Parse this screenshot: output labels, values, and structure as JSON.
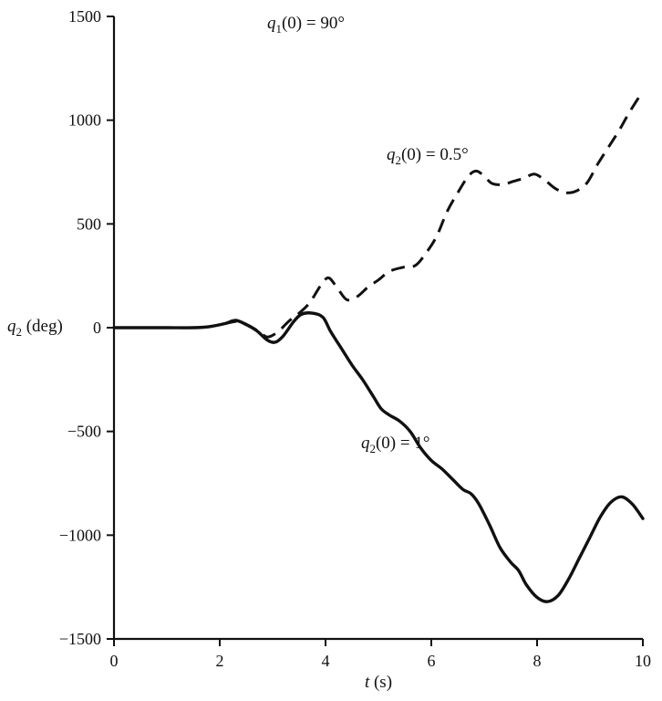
{
  "figure": {
    "background": "#ffffff",
    "ink_color": "#111111"
  },
  "labels": {
    "title": {
      "pre": "q",
      "sub": "1",
      "post": "(0) = 90°"
    },
    "dashed_label": {
      "pre": "q",
      "sub": "2",
      "post": "(0) = 0.5°"
    },
    "solid_label": {
      "pre": "q",
      "sub": "2",
      "post": "(0) = 1°"
    },
    "y_axis": {
      "pre": "q",
      "sub": "2",
      "post": " (deg)"
    },
    "x_axis": {
      "pre": "t",
      "post": " (s)"
    }
  },
  "chart_data": {
    "type": "line",
    "title": "q1(0) = 90°",
    "xlabel": "t (s)",
    "ylabel": "q2 (deg)",
    "xlim": [
      0,
      10
    ],
    "ylim": [
      -1500,
      1500
    ],
    "xticks": [
      0,
      2,
      4,
      6,
      8,
      10
    ],
    "yticks": [
      -1500,
      -1000,
      -500,
      0,
      500,
      1000,
      1500
    ],
    "grid": false,
    "legend_position": "inline-annotations",
    "annotations": [
      {
        "text": "q1(0) = 90°",
        "x": 3.6,
        "y": 1430
      },
      {
        "text": "q2(0) = 0.5°",
        "x": 5.2,
        "y": 840
      },
      {
        "text": "q2(0) = 1°",
        "x": 4.7,
        "y": -540
      }
    ],
    "series": [
      {
        "name": "q2(0) = 0.5°",
        "style": "dashed",
        "x": [
          0,
          0.5,
          1,
          1.5,
          1.8,
          2.1,
          2.35,
          2.55,
          2.75,
          2.9,
          3.1,
          3.3,
          3.5,
          3.7,
          3.9,
          4.05,
          4.2,
          4.4,
          4.6,
          4.8,
          5.0,
          5.2,
          5.45,
          5.7,
          5.9,
          6.1,
          6.3,
          6.5,
          6.7,
          6.85,
          7.0,
          7.15,
          7.35,
          7.55,
          7.75,
          7.95,
          8.15,
          8.35,
          8.55,
          8.75,
          8.95,
          9.15,
          9.35,
          9.55,
          9.75,
          10
        ],
        "y": [
          0,
          0,
          0,
          0,
          5,
          20,
          30,
          10,
          -20,
          -45,
          -20,
          30,
          70,
          120,
          200,
          240,
          200,
          135,
          150,
          195,
          230,
          270,
          290,
          300,
          360,
          440,
          560,
          650,
          730,
          755,
          730,
          695,
          690,
          705,
          720,
          740,
          710,
          670,
          650,
          660,
          700,
          790,
          870,
          950,
          1040,
          1140
        ]
      },
      {
        "name": "q2(0) = 1°",
        "style": "solid",
        "x": [
          0,
          0.5,
          1,
          1.5,
          1.8,
          2.1,
          2.3,
          2.5,
          2.7,
          2.9,
          3.05,
          3.2,
          3.4,
          3.55,
          3.75,
          3.95,
          4.1,
          4.3,
          4.5,
          4.7,
          4.9,
          5.05,
          5.2,
          5.4,
          5.6,
          5.8,
          6.0,
          6.2,
          6.4,
          6.6,
          6.75,
          6.9,
          7.1,
          7.3,
          7.5,
          7.65,
          7.8,
          8.0,
          8.2,
          8.4,
          8.6,
          8.8,
          9.0,
          9.2,
          9.4,
          9.6,
          9.8,
          10
        ],
        "y": [
          0,
          0,
          0,
          0,
          5,
          20,
          35,
          15,
          -15,
          -60,
          -70,
          -40,
          30,
          65,
          70,
          50,
          -20,
          -100,
          -180,
          -250,
          -330,
          -390,
          -420,
          -450,
          -500,
          -580,
          -640,
          -680,
          -730,
          -780,
          -800,
          -850,
          -950,
          -1060,
          -1130,
          -1170,
          -1240,
          -1300,
          -1320,
          -1290,
          -1210,
          -1110,
          -1010,
          -910,
          -840,
          -815,
          -850,
          -920
        ]
      }
    ]
  }
}
